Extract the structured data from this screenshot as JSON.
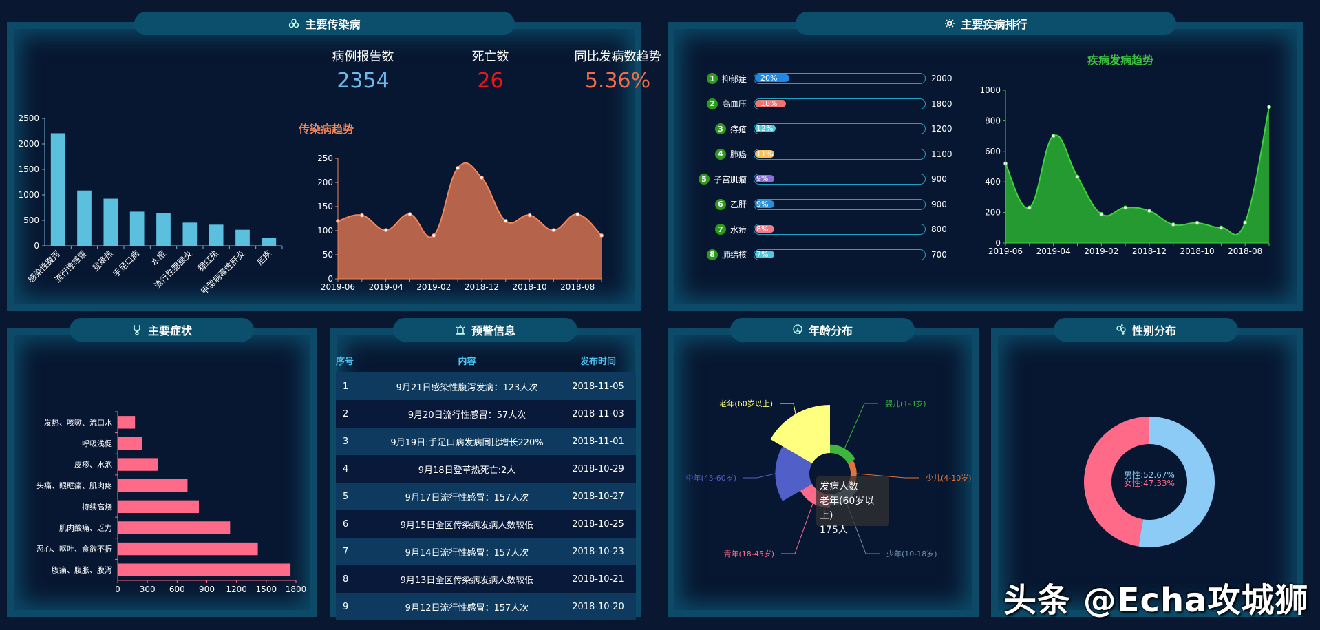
{
  "panels": {
    "infectious": {
      "title": "主要传染病",
      "icon": "biohazard-icon"
    },
    "ranking": {
      "title": "主要疾病排行",
      "icon": "virus-icon"
    },
    "symptoms": {
      "title": "主要症状",
      "icon": "stethoscope-icon"
    },
    "warnings": {
      "title": "预警信息",
      "icon": "alarm-icon"
    },
    "age": {
      "title": "年龄分布",
      "icon": "lightbulb-icon"
    },
    "gender": {
      "title": "性别分布",
      "icon": "gender-icon"
    }
  },
  "kpis": [
    {
      "label": "病例报告数",
      "value": "2354",
      "color": "#6fb8ee"
    },
    {
      "label": "死亡数",
      "value": "26",
      "color": "#e8171c"
    },
    {
      "label": "同比发病数趋势",
      "value": "5.36%",
      "color": "#f06c4b"
    }
  ],
  "ranking": {
    "items": [
      {
        "rank": "1",
        "name": "抑郁症",
        "pct": "20%",
        "value": "2000",
        "color": "#1e88e5",
        "width": 20
      },
      {
        "rank": "2",
        "name": "高血压",
        "pct": "18%",
        "value": "1800",
        "color": "#f0736f",
        "width": 18
      },
      {
        "rank": "3",
        "name": "痔疮",
        "pct": "12%",
        "value": "1200",
        "color": "#4fc9de",
        "width": 12
      },
      {
        "rank": "4",
        "name": "肺癌",
        "pct": "11%",
        "value": "1100",
        "color": "#f5c15c",
        "width": 11
      },
      {
        "rank": "5",
        "name": "子宫肌瘤",
        "pct": "9%",
        "value": "900",
        "color": "#8b6fd6",
        "width": 9
      },
      {
        "rank": "6",
        "name": "乙肝",
        "pct": "9%",
        "value": "900",
        "color": "#2a8fd8",
        "width": 9
      },
      {
        "rank": "7",
        "name": "水痘",
        "pct": "8%",
        "value": "800",
        "color": "#f07a8a",
        "width": 8
      },
      {
        "rank": "8",
        "name": "肺结核",
        "pct": "7%",
        "value": "700",
        "color": "#4fc9de",
        "width": 7
      }
    ]
  },
  "warnings": {
    "headers": [
      "序号",
      "内容",
      "发布时间"
    ],
    "rows": [
      [
        "1",
        "9月21日感染性腹泻发病：123人次",
        "2018-11-05"
      ],
      [
        "2",
        "9月20日流行性感冒：57人次",
        "2018-11-03"
      ],
      [
        "3",
        "9月19日:手足口病发病同比增长220%",
        "2018-11-01"
      ],
      [
        "4",
        "9月18日登革热死亡:2人",
        "2018-10-29"
      ],
      [
        "5",
        "9月17日流行性感冒：157人次",
        "2018-10-27"
      ],
      [
        "6",
        "9月15日全区传染病发病人数较低",
        "2018-10-25"
      ],
      [
        "7",
        "9月14日流行性感冒：157人次",
        "2018-10-23"
      ],
      [
        "8",
        "9月13日全区传染病发病人数较低",
        "2018-10-21"
      ],
      [
        "9",
        "9月12日流行性感冒：157人次",
        "2018-10-20"
      ]
    ]
  },
  "tooltip": {
    "line1": "发病人数",
    "line2": "老年(60岁以上)",
    "line3": "175人"
  },
  "gender_center": {
    "male": "男性:52.67%",
    "female": "女性:47.33%"
  },
  "watermark": "头条 @Echa攻城狮",
  "chart_data": [
    {
      "id": "infectious-bar",
      "type": "bar",
      "title": "",
      "categories": [
        "感染性腹泻",
        "流行性感冒",
        "登革热",
        "手足口病",
        "水痘",
        "流行性腮腺炎",
        "猩红热",
        "甲型病毒性肝炎",
        "疟疾"
      ],
      "values": [
        2210,
        1085,
        925,
        670,
        635,
        455,
        415,
        315,
        160
      ],
      "ylim": [
        0,
        2500
      ],
      "yticks": [
        0,
        500,
        1000,
        1500,
        2000,
        2500
      ],
      "color": "#5bc0de"
    },
    {
      "id": "infectious-trend",
      "type": "area",
      "title": "传染病趋势",
      "x": [
        "2019-06",
        "2019-05",
        "2019-04",
        "2019-03",
        "2019-02",
        "2019-01",
        "2018-12",
        "2018-11",
        "2018-10",
        "2018-09",
        "2018-08",
        "2018-07"
      ],
      "xticks": [
        "2019-06",
        "2019-04",
        "2019-02",
        "2018-12",
        "2018-10",
        "2018-08"
      ],
      "values": [
        120,
        132,
        101,
        134,
        90,
        230,
        210,
        120,
        132,
        101,
        134,
        90
      ],
      "ylim": [
        0,
        250
      ],
      "yticks": [
        0,
        50,
        100,
        150,
        200,
        250
      ],
      "color": "#f0865a",
      "fill": "#b5634a"
    },
    {
      "id": "disease-trend",
      "type": "area",
      "title": "疾病发病趋势",
      "x": [
        "2019-06",
        "2019-05",
        "2019-04",
        "2019-03",
        "2019-02",
        "2019-01",
        "2018-12",
        "2018-11",
        "2018-10",
        "2018-09",
        "2018-08",
        "2018-07"
      ],
      "xticks": [
        "2019-06",
        "2019-04",
        "2019-02",
        "2018-12",
        "2018-10",
        "2018-08"
      ],
      "values": [
        520,
        232,
        701,
        434,
        190,
        232,
        210,
        121,
        132,
        101,
        134,
        890
      ],
      "ylim": [
        0,
        1000
      ],
      "yticks": [
        0,
        200,
        400,
        600,
        800,
        1000
      ],
      "color": "#3fd13f",
      "fill": "#259a30"
    },
    {
      "id": "symptoms-bar",
      "type": "bar",
      "orientation": "horizontal",
      "categories": [
        "腹痛、腹胀、腹泻",
        "恶心、呕吐、食欲不振",
        "肌肉酸痛、乏力",
        "持续高烧",
        "头痛、眼眶痛、肌肉疼",
        "皮疹、水泡",
        "呼吸浅促",
        "发热、咳嗽、流口水"
      ],
      "values": [
        1745,
        1415,
        1135,
        820,
        705,
        410,
        250,
        175
      ],
      "xlim": [
        0,
        1800
      ],
      "xticks": [
        0,
        300,
        600,
        900,
        1200,
        1500,
        1800
      ],
      "color": "#ff6a88"
    },
    {
      "id": "age-rose",
      "type": "pie",
      "roseType": "radius",
      "series_name": "发病人数",
      "categories": [
        "婴儿(1-3岁)",
        "少儿(4-10岁)",
        "少年(10-18岁)",
        "青年(18-45岁)",
        "中年(45-60岁)",
        "老年(60岁以上)"
      ],
      "values": [
        20,
        10,
        30,
        40,
        120,
        175
      ],
      "colors": [
        "#3fb53f",
        "#e0743c",
        "#6f8ea8",
        "#ff6a88",
        "#5060c8",
        "#ffff80"
      ]
    },
    {
      "id": "gender-donut",
      "type": "pie",
      "categories": [
        "男性",
        "女性"
      ],
      "values": [
        52.67,
        47.33
      ],
      "colors": [
        "#8ccbf5",
        "#ff6a88"
      ]
    }
  ]
}
